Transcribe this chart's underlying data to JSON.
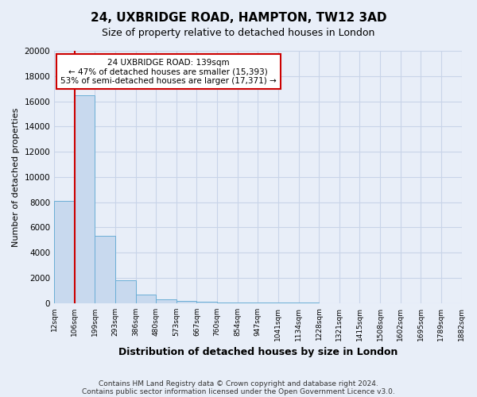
{
  "title": "24, UXBRIDGE ROAD, HAMPTON, TW12 3AD",
  "subtitle": "Size of property relative to detached houses in London",
  "xlabel": "Distribution of detached houses by size in London",
  "ylabel": "Number of detached properties",
  "bar_color": "#c8d9ee",
  "bar_edge_color": "#6baed6",
  "bar_heights": [
    8100,
    16500,
    5300,
    1800,
    700,
    320,
    190,
    130,
    60,
    50,
    30,
    20,
    15,
    10,
    5,
    5,
    3,
    2,
    1,
    0
  ],
  "bin_labels": [
    "12sqm",
    "106sqm",
    "199sqm",
    "293sqm",
    "386sqm",
    "480sqm",
    "573sqm",
    "667sqm",
    "760sqm",
    "854sqm",
    "947sqm",
    "1041sqm",
    "1134sqm",
    "1228sqm",
    "1321sqm",
    "1415sqm",
    "1508sqm",
    "1602sqm",
    "1695sqm",
    "1789sqm",
    "1882sqm"
  ],
  "ylim": [
    0,
    20000
  ],
  "yticks": [
    0,
    2000,
    4000,
    6000,
    8000,
    10000,
    12000,
    14000,
    16000,
    18000,
    20000
  ],
  "vline_x": 1.0,
  "property_line_label": "24 UXBRIDGE ROAD: 139sqm",
  "annotation_line1": "← 47% of detached houses are smaller (15,393)",
  "annotation_line2": "53% of semi-detached houses are larger (17,371) →",
  "annotation_box_color": "#ffffff",
  "annotation_box_edge_color": "#cc0000",
  "vline_color": "#cc0000",
  "grid_color": "#c8d4e8",
  "bg_color": "#e8eef8",
  "footer1": "Contains HM Land Registry data © Crown copyright and database right 2024.",
  "footer2": "Contains public sector information licensed under the Open Government Licence v3.0."
}
